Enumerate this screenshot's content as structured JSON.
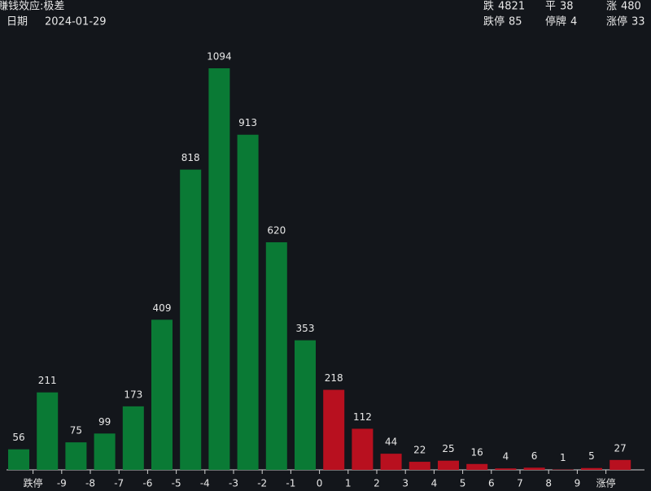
{
  "header": {
    "title": "赚钱效应:极差",
    "date_label": "日期",
    "date": "2024-01-29"
  },
  "stats": [
    {
      "label": "跌",
      "value": 4821,
      "color": "#2aa244"
    },
    {
      "label": "平",
      "value": 38,
      "color": "#e8e8e8"
    },
    {
      "label": "涨",
      "value": 480,
      "color": "#e0303a"
    },
    {
      "label": "跌停",
      "value": 85,
      "color": "#2aa244"
    },
    {
      "label": "停牌",
      "value": 4,
      "color": "#e8e8e8"
    },
    {
      "label": "涨停",
      "value": 33,
      "color": "#e0303a"
    }
  ],
  "chart_data": {
    "type": "bar",
    "values": [
      56,
      211,
      75,
      99,
      173,
      409,
      818,
      1094,
      913,
      620,
      353,
      218,
      112,
      44,
      22,
      25,
      16,
      4,
      6,
      1,
      5,
      27
    ],
    "colors": [
      "#0a7a35",
      "#0a7a35",
      "#0a7a35",
      "#0a7a35",
      "#0a7a35",
      "#0a7a35",
      "#0a7a35",
      "#0a7a35",
      "#0a7a35",
      "#0a7a35",
      "#0a7a35",
      "#b8101f",
      "#b8101f",
      "#b8101f",
      "#b8101f",
      "#b8101f",
      "#b8101f",
      "#b8101f",
      "#b8101f",
      "#b8101f",
      "#b8101f",
      "#b8101f"
    ],
    "boundary_labels": [
      "跌停",
      "-9",
      "-8",
      "-7",
      "-6",
      "-5",
      "-4",
      "-3",
      "-2",
      "-1",
      "0",
      "1",
      "2",
      "3",
      "4",
      "5",
      "6",
      "7",
      "8",
      "9",
      "涨停"
    ],
    "boundary_colors": [
      "#2aa244",
      "#2aa244",
      "#2aa244",
      "#2aa244",
      "#2aa244",
      "#2aa244",
      "#2aa244",
      "#2aa244",
      "#2aa244",
      "#2aa244",
      "#ffffff",
      "#d6242c",
      "#d6242c",
      "#d6242c",
      "#d6242c",
      "#d6242c",
      "#d6242c",
      "#d6242c",
      "#d6242c",
      "#d6242c",
      "#d6242c"
    ]
  }
}
